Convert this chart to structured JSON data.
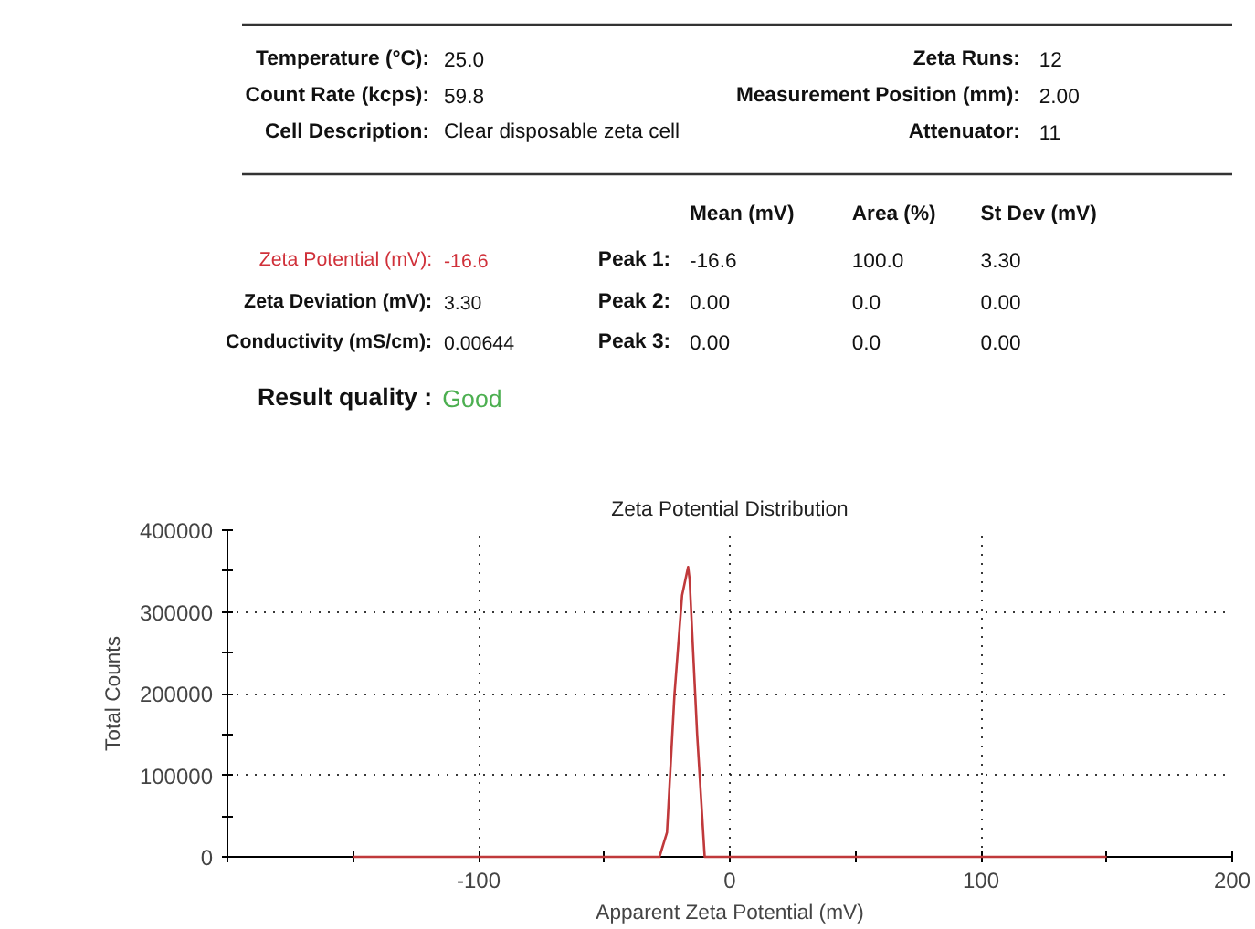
{
  "chart_data": {
    "type": "line",
    "title": "Zeta Potential Distribution",
    "xlabel": "Apparent Zeta Potential (mV)",
    "ylabel": "Total Counts",
    "x": [
      -150,
      -28,
      -25,
      -22,
      -19,
      -16.6,
      -16,
      -13,
      -10,
      150
    ],
    "series": [
      {
        "color": "#c0393b",
        "values": [
          0,
          0,
          30000,
          200000,
          320000,
          355000,
          340000,
          150000,
          0,
          0
        ]
      }
    ],
    "xlim": [
      -200,
      200
    ],
    "xticks": [
      {
        "value": -200,
        "label": null
      },
      {
        "value": -150,
        "label": null
      },
      -100,
      {
        "value": -50,
        "label": null
      },
      0,
      {
        "value": 50,
        "label": null
      },
      100,
      {
        "value": 150,
        "label": null
      },
      200
    ],
    "ylim": [
      0,
      400000
    ],
    "yticks": [
      0,
      {
        "value": 50000,
        "label": null
      },
      100000,
      {
        "value": 150000,
        "label": null
      },
      200000,
      {
        "value": 250000,
        "label": null
      },
      300000,
      {
        "value": 350000,
        "label": null
      },
      400000
    ],
    "grid": true,
    "line_style": "solid",
    "marker": "none",
    "annotations": [
      "Temperature (°C):",
      "25.0",
      "Count Rate (kcps):",
      "59.8",
      "Cell Description:",
      "Clear disposable zeta cell",
      "Zeta Runs:",
      "12",
      "Measurement Position (mm):",
      "2.00",
      "Attenuator:",
      "11",
      "Mean (mV)",
      "Area (%)",
      "St Dev (mV)",
      "Zeta Potential (mV):",
      "-16.6",
      "Zeta Deviation (mV):",
      "3.30",
      "Conductivity (mS/cm):",
      "0.00644",
      "Peak 1:",
      "-16.6",
      "100.0",
      "3.30",
      "Peak 2:",
      "0.00",
      "0.0",
      "0.00",
      "Peak 3:",
      "0.00",
      "0.0",
      "0.00",
      "Result quality :",
      "Good"
    ]
  }
}
